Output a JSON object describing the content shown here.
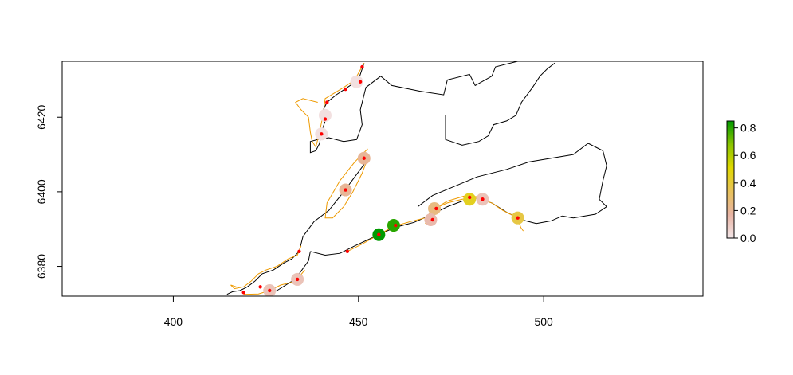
{
  "map": {
    "x_axis": {
      "min": 370,
      "max": 543,
      "ticks": [
        400,
        450,
        500
      ],
      "labels": [
        "400",
        "450",
        "500"
      ]
    },
    "y_axis": {
      "min": 6372,
      "max": 6435,
      "ticks": [
        6380,
        6400,
        6420
      ],
      "labels": [
        "6380",
        "6400",
        "6420"
      ]
    },
    "colors": {
      "frame": "#000000",
      "coast": "#000000",
      "track": "#ee9a00",
      "observation": "#ff0000"
    },
    "legend": {
      "min": 0.0,
      "max": 0.85,
      "ticks": [
        0.0,
        0.2,
        0.4,
        0.6,
        0.8
      ],
      "labels": [
        "0.0",
        "0.2",
        "0.4",
        "0.6",
        "0.8"
      ],
      "gradient": [
        "#f3e6e8",
        "#e8b4a4",
        "#e8c25a",
        "#e0d800",
        "#8ac400",
        "#009a00"
      ]
    },
    "sites": [
      {
        "x": 455.5,
        "y": 6388.5,
        "value": 0.85
      },
      {
        "x": 459.5,
        "y": 6391,
        "value": 0.8
      },
      {
        "x": 470.5,
        "y": 6395.5,
        "value": 0.25
      },
      {
        "x": 480,
        "y": 6398,
        "value": 0.45
      },
      {
        "x": 483.5,
        "y": 6398,
        "value": 0.12
      },
      {
        "x": 493,
        "y": 6393,
        "value": 0.38
      },
      {
        "x": 446.5,
        "y": 6400.5,
        "value": 0.2
      },
      {
        "x": 451.5,
        "y": 6409,
        "value": 0.2
      },
      {
        "x": 469.5,
        "y": 6392.5,
        "value": 0.15
      },
      {
        "x": 449.5,
        "y": 6429.5,
        "value": 0.02
      },
      {
        "x": 441,
        "y": 6420.5,
        "value": 0.02
      },
      {
        "x": 440,
        "y": 6415.5,
        "value": 0.02
      },
      {
        "x": 426,
        "y": 6373.5,
        "value": 0.12
      },
      {
        "x": 433.5,
        "y": 6376.5,
        "value": 0.12
      }
    ],
    "observations": [
      [
        451,
        6433.5
      ],
      [
        450.5,
        6429.5
      ],
      [
        446.5,
        6427.5
      ],
      [
        441.5,
        6424
      ],
      [
        441,
        6419.5
      ],
      [
        440,
        6415.5
      ],
      [
        451.5,
        6409
      ],
      [
        446.5,
        6400.5
      ],
      [
        447,
        6384
      ],
      [
        455.5,
        6388.5
      ],
      [
        460,
        6391
      ],
      [
        470,
        6392.5
      ],
      [
        471,
        6395.5
      ],
      [
        480,
        6398.5
      ],
      [
        483.5,
        6398
      ],
      [
        493,
        6393
      ],
      [
        434,
        6384
      ],
      [
        433.5,
        6376.5
      ],
      [
        426,
        6373.5
      ],
      [
        423.5,
        6374.5
      ],
      [
        419,
        6373
      ]
    ],
    "coast_lines": [
      [
        [
          451.5,
          6434.5
        ],
        [
          450,
          6430
        ],
        [
          447,
          6428
        ],
        [
          444,
          6426
        ],
        [
          441.5,
          6424
        ],
        [
          440,
          6421
        ],
        [
          441,
          6419
        ],
        [
          440,
          6416
        ],
        [
          439.5,
          6413
        ],
        [
          438.5,
          6411
        ],
        [
          437,
          6410.5
        ],
        [
          437,
          6413.5
        ],
        [
          439,
          6414
        ],
        [
          442,
          6414.5
        ],
        [
          446,
          6413.5
        ],
        [
          449.5,
          6414
        ],
        [
          451,
          6418
        ],
        [
          450.5,
          6422
        ],
        [
          452,
          6428
        ],
        [
          456,
          6431
        ],
        [
          459,
          6428.5
        ],
        [
          466.5,
          6427
        ],
        [
          473,
          6426
        ],
        [
          474,
          6430
        ],
        [
          480,
          6431.5
        ],
        [
          481.5,
          6428.5
        ],
        [
          486,
          6431
        ],
        [
          487,
          6433.5
        ],
        [
          493,
          6435
        ]
      ],
      [
        [
          473.5,
          6420.5
        ],
        [
          473.5,
          6414
        ],
        [
          478,
          6412.5
        ],
        [
          482.5,
          6413.5
        ],
        [
          485,
          6415
        ],
        [
          486.5,
          6418
        ],
        [
          490,
          6419
        ],
        [
          492.5,
          6420.5
        ],
        [
          494,
          6424
        ],
        [
          497,
          6428
        ],
        [
          499,
          6431
        ],
        [
          501,
          6433
        ],
        [
          503,
          6434.5
        ]
      ],
      [
        [
          466,
          6396
        ],
        [
          470,
          6399
        ],
        [
          482,
          6404
        ],
        [
          490,
          6406
        ],
        [
          496,
          6408
        ],
        [
          502,
          6409
        ],
        [
          508,
          6410
        ],
        [
          512,
          6413
        ],
        [
          516,
          6411
        ],
        [
          517,
          6407
        ],
        [
          516,
          6403
        ],
        [
          515,
          6398
        ],
        [
          517,
          6396
        ],
        [
          514,
          6394
        ],
        [
          508,
          6393
        ],
        [
          505,
          6393.5
        ]
      ],
      [
        [
          452,
          6408
        ],
        [
          446,
          6400
        ],
        [
          442,
          6395
        ],
        [
          438,
          6392
        ],
        [
          435,
          6388
        ],
        [
          434,
          6384
        ],
        [
          432,
          6382
        ],
        [
          430,
          6381
        ],
        [
          427,
          6379
        ],
        [
          424,
          6378
        ],
        [
          422,
          6376
        ],
        [
          420,
          6374.5
        ],
        [
          418,
          6373.5
        ],
        [
          416,
          6373.2
        ],
        [
          414.5,
          6372.5
        ]
      ],
      [
        [
          437,
          6384
        ],
        [
          441,
          6383
        ],
        [
          445,
          6383.5
        ],
        [
          449,
          6385.5
        ],
        [
          455.5,
          6388.5
        ],
        [
          460,
          6390.5
        ],
        [
          465,
          6391.8
        ],
        [
          470,
          6394
        ],
        [
          474,
          6396
        ],
        [
          478,
          6397.5
        ],
        [
          482,
          6398.3
        ],
        [
          486,
          6397
        ],
        [
          490,
          6394.5
        ],
        [
          494,
          6392.5
        ],
        [
          498,
          6391.5
        ],
        [
          502,
          6392.2
        ],
        [
          505,
          6393.5
        ]
      ],
      [
        [
          426,
          6372.5
        ],
        [
          428,
          6373.5
        ],
        [
          432,
          6376
        ],
        [
          434,
          6378
        ],
        [
          436.5,
          6381.5
        ],
        [
          437,
          6384
        ]
      ]
    ],
    "track_lines": [
      [
        [
          451.5,
          6434.5
        ],
        [
          449,
          6430
        ],
        [
          446,
          6428
        ],
        [
          441,
          6425
        ],
        [
          440.5,
          6421
        ],
        [
          439.5,
          6416
        ],
        [
          438.5,
          6412
        ],
        [
          437.5,
          6413.5
        ],
        [
          437,
          6416
        ],
        [
          436.5,
          6420
        ],
        [
          434.5,
          6422
        ],
        [
          433,
          6424
        ],
        [
          435,
          6425
        ],
        [
          437,
          6424.5
        ],
        [
          439,
          6424
        ]
      ],
      [
        [
          452.5,
          6411.5
        ],
        [
          449,
          6408
        ],
        [
          445,
          6403
        ],
        [
          441.5,
          6397
        ],
        [
          441,
          6393
        ],
        [
          443,
          6393
        ],
        [
          446,
          6396
        ],
        [
          448.5,
          6400
        ],
        [
          451,
          6405
        ],
        [
          452.5,
          6409
        ]
      ],
      [
        [
          447,
          6384
        ],
        [
          451,
          6386
        ],
        [
          455.5,
          6388.5
        ],
        [
          459.5,
          6390.7
        ],
        [
          464,
          6392
        ],
        [
          468,
          6393
        ],
        [
          470.5,
          6395.5
        ],
        [
          474,
          6397
        ],
        [
          478,
          6398
        ],
        [
          482,
          6398.3
        ],
        [
          486,
          6397
        ],
        [
          489,
          6395
        ],
        [
          491,
          6394
        ],
        [
          493,
          6393
        ],
        [
          493.8,
          6390.5
        ],
        [
          494.5,
          6389.5
        ]
      ],
      [
        [
          468,
          6391.5
        ],
        [
          470,
          6393
        ],
        [
          471.5,
          6396
        ],
        [
          474,
          6397.5
        ],
        [
          479,
          6399
        ],
        [
          483.5,
          6398.5
        ]
      ],
      [
        [
          434.5,
          6385.5
        ],
        [
          433.5,
          6383
        ],
        [
          431,
          6382
        ],
        [
          428,
          6380
        ],
        [
          425,
          6379
        ],
        [
          423,
          6378
        ],
        [
          421,
          6376
        ],
        [
          419,
          6374.5
        ],
        [
          416.5,
          6374
        ],
        [
          415.5,
          6375
        ],
        [
          417,
          6374.5
        ]
      ],
      [
        [
          435.5,
          6379
        ],
        [
          433,
          6376
        ],
        [
          429,
          6375
        ],
        [
          426,
          6373.5
        ],
        [
          423,
          6372.6
        ],
        [
          419,
          6372.5
        ]
      ]
    ]
  }
}
